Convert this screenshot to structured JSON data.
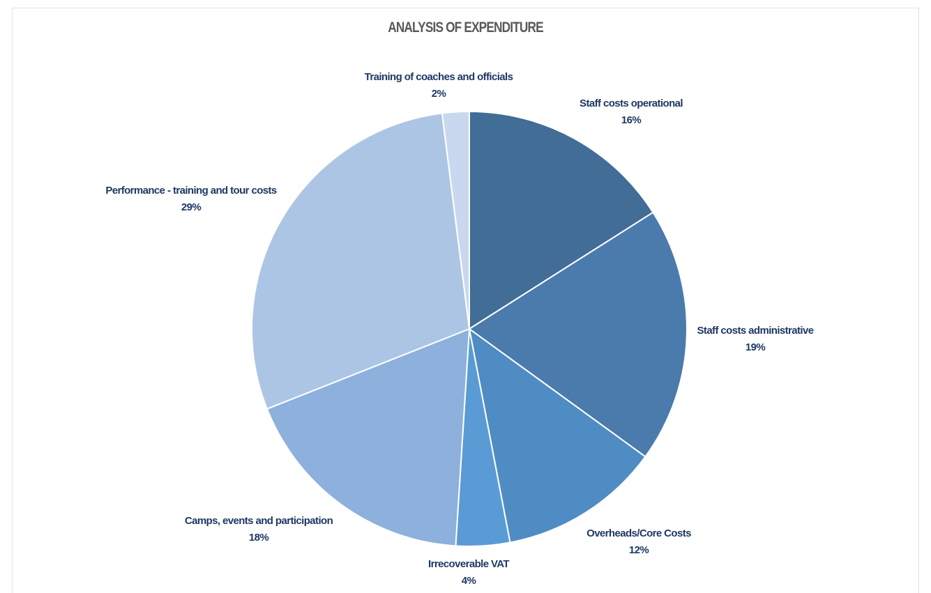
{
  "chart_data": {
    "type": "pie",
    "title": "ANALYSIS OF EXPENDITURE",
    "slices": [
      {
        "name": "Staff costs operational",
        "value": 16,
        "label": "16%",
        "color": "#416d96"
      },
      {
        "name": "Staff costs administrative",
        "value": 19,
        "label": "19%",
        "color": "#4a7bac"
      },
      {
        "name": "Overheads/Core Costs",
        "value": 12,
        "label": "12%",
        "color": "#4f8cc3"
      },
      {
        "name": "Irrecoverable VAT",
        "value": 4,
        "label": "4%",
        "color": "#5a9bd6"
      },
      {
        "name": "Camps, events and participation",
        "value": 18,
        "label": "18%",
        "color": "#8db0dc"
      },
      {
        "name": "Performance - training and tour costs",
        "value": 29,
        "label": "29%",
        "color": "#adc5e4"
      },
      {
        "name": "Training of coaches and officials",
        "value": 2,
        "label": "2%",
        "color": "#c9d8ee"
      }
    ],
    "legend": "none",
    "data_labels": "outside"
  }
}
